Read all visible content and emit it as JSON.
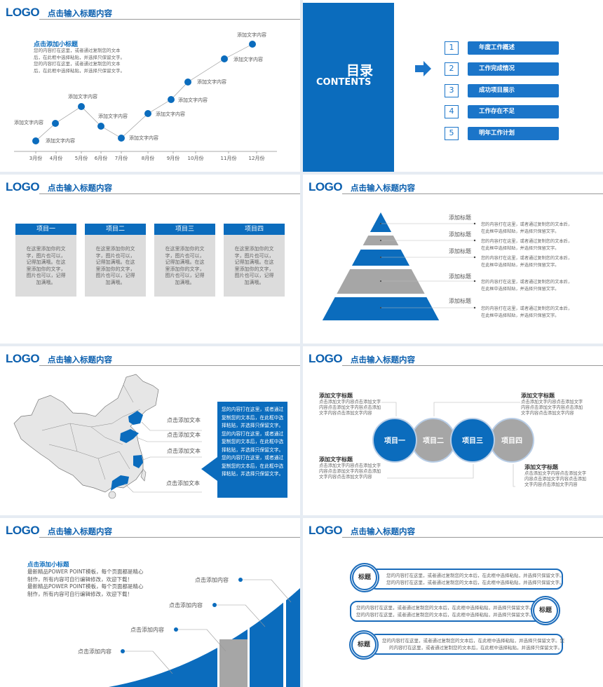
{
  "header": {
    "logo": "LOGO",
    "title": "点击输入标题内容"
  },
  "colors": {
    "primary": "#0b6cbd",
    "gray": "#a6a6a6",
    "background": "#e6ecf3"
  },
  "slide1": {
    "subtitle": "点击添加小标题",
    "body": [
      "您的内容打在这里，或者通过复制您的文本",
      "后，在此框中选择粘贴，并选择只保留文字。",
      "您的内容打在这里，或者通过复制您的文本",
      "后，在此框中选择粘贴，并选择只保留文字。"
    ],
    "months": [
      "3月份",
      "4月份",
      "5月份",
      "6月份",
      "7月份",
      "8月份",
      "9月份",
      "10月份",
      "11月份",
      "12月份"
    ],
    "point_labels": [
      "添加文字内容",
      "添加文字内容",
      "添加文字内容",
      "添加文字内容",
      "添加文字内容",
      "添加文字内容",
      "添加文字内容",
      "添加文字内容",
      "添加文字内容",
      "添加文字内容"
    ]
  },
  "slide2": {
    "title": "目录",
    "subtitle": "CONTENTS",
    "arrow_icon": "right-arrow-icon",
    "items": [
      {
        "num": "1",
        "label": "年度工作概述"
      },
      {
        "num": "2",
        "label": "工作完成情况"
      },
      {
        "num": "3",
        "label": "成功项目展示"
      },
      {
        "num": "4",
        "label": "工作存在不足"
      },
      {
        "num": "5",
        "label": "明年工作计划"
      }
    ]
  },
  "slide3": {
    "cards": [
      {
        "title": "项目一",
        "body": "在这里添加你的文字，图片也可以，记得加满哦。在这里添加你的文字，图片也可以，记得加满哦。"
      },
      {
        "title": "项目二",
        "body": "在这里添加你的文字，图片也可以，记得加满哦。在这里添加你的文字，图片也可以，记得加满哦。"
      },
      {
        "title": "项目三",
        "body": "在这里添加你的文字，图片也可以，记得加满哦。在这里添加你的文字，图片也可以，记得加满哦。"
      },
      {
        "title": "项目四",
        "body": "在这里添加你的文字，图片也可以，记得加满哦。在这里添加你的文字，图片也可以，记得加满哦。"
      }
    ]
  },
  "slide4": {
    "levels": [
      {
        "title": "添加标题",
        "line1": "您的内容打在这里，或者通过复制您的文本后，",
        "line2": "在此框中选择粘贴，并选择只保留文字。"
      },
      {
        "title": "添加标题",
        "line1": "您的内容打在这里，或者通过复制您的文本后，",
        "line2": "在此框中选择粘贴，并选择只保留文字。"
      },
      {
        "title": "添加标题",
        "line1": "您的内容打在这里，或者通过复制您的文本后，",
        "line2": "在此框中选择粘贴，并选择只保留文字。"
      },
      {
        "title": "添加标题",
        "line1": "您的内容打在这里，或者通过复制您的文本后，",
        "line2": "在此框中选择粘贴，并选择只保留文字。"
      },
      {
        "title": "添加标题",
        "line1": "您的内容打在这里，或者通过复制您的文本后，",
        "line2": "在此框中选择粘贴，并选择只保留文字。"
      }
    ]
  },
  "slide5": {
    "labels": [
      "点击添加文本",
      "点击添加文本",
      "点击添加文本",
      "点击添加文本"
    ],
    "box_para1": "您的内容打在这里，或者通过复制您的文本后，在此框中选择粘贴，并选择只保留文字。您的内容打在这里，或者通过复制您的文本后，在此框中选择粘贴，并选择只保留文字。",
    "box_para2": "您的内容打在这里，或者通过复制您的文本后，在此框中选择粘贴，并选择只保留文字。"
  },
  "slide6": {
    "circles": [
      "项目一",
      "项目二",
      "项目三",
      "项目四"
    ],
    "blocks": [
      {
        "title": "添加文字标题",
        "lines": [
          "点击添加文字内容点击添加文字",
          "内容点击添加文字内容点击添加",
          "文字内容点击添加文字内容"
        ]
      },
      {
        "title": "添加文字标题",
        "lines": [
          "点击添加文字内容点击添加文字",
          "内容点击添加文字内容点击添加",
          "文字内容点击添加文字内容"
        ]
      },
      {
        "title": "添加文字标题",
        "lines": [
          "点击添加文字内容点击添加文字",
          "内容点击添加文字内容点击添加",
          "文字内容点击添加文字内容"
        ]
      },
      {
        "title": "添加文字标题",
        "lines": [
          "点击添加文字内容点击添加文字",
          "内容点击添加文字内容点击添加",
          "文字内容点击添加文字内容"
        ]
      }
    ]
  },
  "slide7": {
    "subtitle": "点击添加小标题",
    "body": [
      "最新精品POWER POINT模板，每个页面都是精心",
      "制作，所有内容可自行编辑修改，欢迎下载！",
      "最新精品POWER POINT模板，每个页面都是精心",
      "制作，所有内容可自行编辑修改，欢迎下载！"
    ],
    "labels": [
      "点击添加内容",
      "点击添加内容",
      "点击添加内容",
      "点击添加内容"
    ]
  },
  "slide8": {
    "rows": [
      {
        "badge": "标题",
        "line1": "您的内容打在这里，或者通过复制您的文本后，在此框中选择粘贴，并选择只保留文字。",
        "line2": "您的内容打在这里，或者通过复制您的文本后，在此框中选择粘贴，并选择只保留文字。"
      },
      {
        "badge": "标题",
        "line1": "您的内容打在这里，或者通过复制您的文本后，在此框中选择粘贴，并选择只保留文字。",
        "line2": "您的内容打在这里，或者通过复制您的文本后，在此框中选择粘贴，并选择只保留文字。"
      },
      {
        "badge": "标题",
        "line1": "您的内容打在这里，或者通过复制您的文本后，在此框中选择粘贴，并选择只保留文字。您",
        "line2": "的内容打在这里，或者通过复制您的文本后，在此框中选择粘贴，并选择只保留文字。"
      }
    ]
  }
}
